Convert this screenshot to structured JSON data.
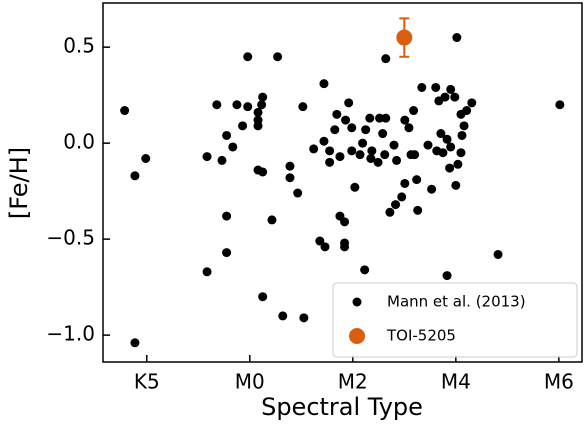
{
  "chart_data": {
    "type": "scatter",
    "xlabel": "Spectral Type",
    "ylabel": "[Fe/H]",
    "xlim": [
      -2.85,
      6.45
    ],
    "ylim": [
      -1.14,
      0.73
    ],
    "xticks": [
      {
        "value": -2,
        "label": "K5"
      },
      {
        "value": 0,
        "label": "M0"
      },
      {
        "value": 2,
        "label": "M2"
      },
      {
        "value": 4,
        "label": "M4"
      },
      {
        "value": 6,
        "label": "M6"
      }
    ],
    "yticks": [
      {
        "value": -1.0,
        "label": "−1.0"
      },
      {
        "value": -0.5,
        "label": "−0.5"
      },
      {
        "value": 0.0,
        "label": "0.0"
      },
      0.5
    ],
    "legend": "lower right",
    "series": [
      {
        "name": "Mann et al. (2013)",
        "color": "#000000",
        "x": [
          -2.43,
          -2.23,
          -2.02,
          -2.23,
          -0.83,
          -0.83,
          -0.64,
          -0.54,
          -0.45,
          -0.45,
          -0.45,
          -0.33,
          -0.25,
          -0.14,
          -0.04,
          -0.04,
          0.16,
          0.16,
          0.16,
          0.23,
          0.25,
          0.16,
          0.25,
          0.25,
          0.43,
          0.54,
          0.64,
          0.78,
          0.78,
          0.93,
          1.03,
          1.05,
          1.24,
          1.36,
          1.44,
          1.44,
          1.46,
          1.55,
          1.55,
          1.65,
          1.69,
          1.75,
          1.75,
          1.84,
          1.84,
          1.84,
          1.86,
          1.92,
          1.98,
          2.04,
          1.98,
          2.14,
          2.19,
          2.23,
          2.25,
          2.33,
          2.35,
          2.37,
          2.49,
          2.52,
          2.58,
          2.62,
          2.64,
          2.64,
          2.72,
          2.8,
          2.83,
          2.85,
          2.95,
          3.01,
          3.01,
          3.09,
          3.13,
          3.18,
          3.2,
          3.24,
          3.26,
          3.34,
          3.46,
          3.53,
          3.61,
          3.63,
          3.67,
          3.71,
          3.75,
          3.79,
          3.83,
          3.83,
          3.88,
          3.9,
          3.9,
          3.98,
          4.0,
          4.02,
          4.04,
          4.1,
          4.1,
          4.12,
          4.16,
          4.21,
          4.31,
          4.82,
          6.02
        ],
        "values": [
          0.17,
          -0.17,
          -0.08,
          -1.04,
          -0.07,
          -0.67,
          0.2,
          -0.09,
          0.04,
          -0.38,
          -0.57,
          -0.02,
          0.2,
          0.09,
          0.45,
          0.19,
          0.16,
          0.12,
          0.09,
          0.2,
          0.24,
          -0.14,
          -0.15,
          -0.8,
          -0.4,
          0.45,
          -0.9,
          -0.12,
          -0.18,
          -0.26,
          0.19,
          -0.91,
          -0.03,
          -0.51,
          0.31,
          0.01,
          -0.54,
          -0.04,
          -0.1,
          0.07,
          0.15,
          -0.07,
          -0.38,
          -0.41,
          -0.52,
          -0.54,
          0.12,
          0.21,
          0.08,
          -0.23,
          -0.04,
          -0.06,
          0.0,
          -0.66,
          0.07,
          0.13,
          -0.08,
          -0.04,
          -0.1,
          0.13,
          0.05,
          -0.06,
          0.44,
          0.13,
          -0.36,
          -0.01,
          -0.32,
          -0.09,
          -0.28,
          -0.21,
          0.12,
          0.08,
          -0.06,
          0.17,
          -0.06,
          -0.19,
          -0.35,
          0.29,
          -0.01,
          -0.24,
          0.29,
          -0.04,
          0.22,
          0.05,
          -0.05,
          0.24,
          0.02,
          -0.69,
          -0.13,
          0.28,
          -0.02,
          0.24,
          -0.22,
          0.55,
          -0.11,
          0.15,
          -0.05,
          0.04,
          0.09,
          0.17,
          0.21,
          -0.58,
          0.2
        ]
      },
      {
        "name": "TOI-5205",
        "color": "#d95f0e",
        "x": [
          3.0
        ],
        "values": [
          0.55
        ],
        "yerr": [
          0.1
        ]
      }
    ]
  }
}
